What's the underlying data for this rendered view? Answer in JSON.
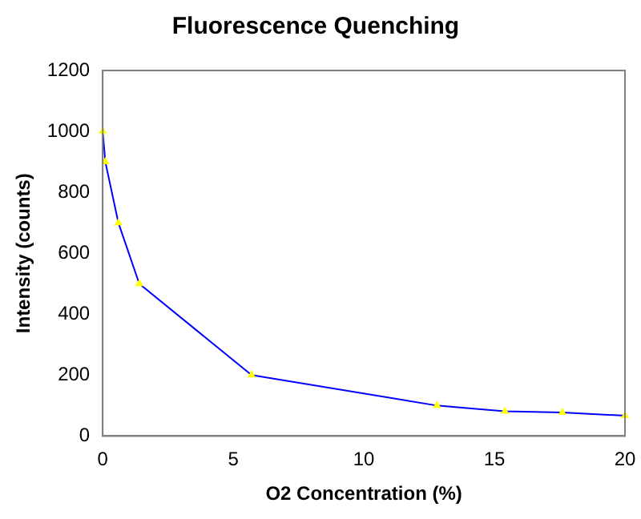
{
  "chart_data": {
    "type": "line",
    "title": "Fluorescence Quenching",
    "xlabel": "O2 Concentration (%)",
    "ylabel": "Intensity (counts)",
    "x": [
      0,
      0.1,
      0.6,
      1.4,
      5.7,
      12.8,
      15.4,
      17.6,
      20
    ],
    "series": [
      {
        "color": "#0000ff",
        "values": [
          1000,
          900,
          700,
          500,
          200,
          100,
          81,
          77,
          67
        ]
      }
    ],
    "xlim": [
      0,
      20
    ],
    "xticks": [
      0,
      5,
      10,
      15,
      20
    ],
    "ylim": [
      0,
      1200
    ],
    "yticks": [
      0,
      200,
      400,
      600,
      800,
      1000,
      1200
    ],
    "grid": false,
    "legend": false,
    "marker": "triangle",
    "line_style": "solid"
  }
}
